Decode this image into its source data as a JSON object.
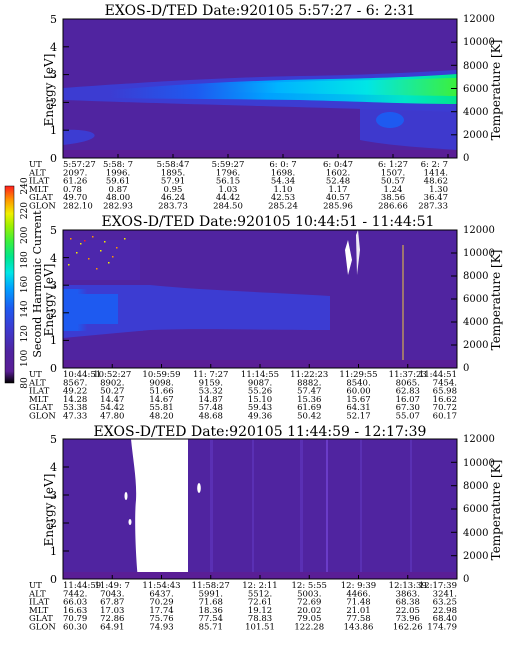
{
  "colors": {
    "background": "#5024a0",
    "scale": [
      "#000000",
      "#5a1e96",
      "#5024a0",
      "#3c3cd2",
      "#1e5af0",
      "#00a0ff",
      "#00e6e6",
      "#00e68c",
      "#3cf03c",
      "#a0f000",
      "#f0f000",
      "#ff9600",
      "#ff1e1e"
    ]
  },
  "colorbar": {
    "label": "Second Harmonic Current",
    "ticks": [
      "80",
      "100",
      "120",
      "140",
      "160",
      "180",
      "200",
      "220",
      "240"
    ],
    "range": [
      80,
      240
    ]
  },
  "panels": [
    {
      "title": "EXOS-D/TED   Date:920105   5:57:27 - 6: 2:31",
      "ylabel": "Energy [eV]",
      "y2label": "Temperature [K]",
      "yticks": [
        "0",
        "1",
        "2",
        "3",
        "4",
        "5"
      ],
      "y2ticks": [
        "0",
        "2000",
        "4000",
        "6000",
        "8000",
        "10000",
        "12000"
      ],
      "table": {
        "row_labels": [
          "UT",
          "ALT",
          "ILAT",
          "MLT",
          "GLAT",
          "GLON"
        ],
        "columns": [
          [
            "5:57:27",
            "2097.",
            "61.26",
            "0.78",
            "49.70",
            "282.10"
          ],
          [
            "5:58: 7",
            "1996.",
            "59.61",
            "0.87",
            "48.00",
            "282.93"
          ],
          [
            "5:58:47",
            "1895.",
            "57.91",
            "0.95",
            "46.24",
            "283.73"
          ],
          [
            "5:59:27",
            "1796.",
            "56.15",
            "1.03",
            "44.42",
            "284.50"
          ],
          [
            "6: 0: 7",
            "1698.",
            "54.34",
            "1.10",
            "42.53",
            "285.24"
          ],
          [
            "6: 0:47",
            "1602.",
            "52.48",
            "1.17",
            "40.57",
            "285.96"
          ],
          [
            "6: 1:27",
            "1507.",
            "50.57",
            "1.24",
            "38.56",
            "286.66"
          ],
          [
            "6: 2: 7",
            "1414.",
            "48.62",
            "1.30",
            "36.47",
            "287.33"
          ]
        ]
      }
    },
    {
      "title": "EXOS-D/TED   Date:920105   10:44:51 - 11:44:51",
      "ylabel": "Energy [eV]",
      "y2label": "Temperature [K]",
      "yticks": [
        "0",
        "1",
        "2",
        "3",
        "4",
        "5"
      ],
      "y2ticks": [
        "0",
        "2000",
        "4000",
        "6000",
        "8000",
        "10000",
        "12000"
      ],
      "table": {
        "row_labels": [
          "UT",
          "ALT",
          "ILAT",
          "MLT",
          "GLAT",
          "GLON"
        ],
        "columns": [
          [
            "10:44:51",
            "8567.",
            "49.22",
            "14.28",
            "53.38",
            "47.33"
          ],
          [
            "10:52:27",
            "8902.",
            "50.27",
            "14.47",
            "54.42",
            "47.80"
          ],
          [
            "10:59:59",
            "9098.",
            "51.66",
            "14.67",
            "55.81",
            "48.20"
          ],
          [
            "11: 7:27",
            "9159.",
            "53.32",
            "14.87",
            "57.48",
            "48.68"
          ],
          [
            "11:14:55",
            "9087.",
            "55.26",
            "15.10",
            "59.43",
            "49.36"
          ],
          [
            "11:22:23",
            "8882.",
            "57.47",
            "15.36",
            "61.69",
            "50.42"
          ],
          [
            "11:29:55",
            "8540.",
            "60.00",
            "15.67",
            "64.31",
            "52.17"
          ],
          [
            "11:37:23",
            "8065.",
            "62.83",
            "16.07",
            "67.30",
            "55.07"
          ],
          [
            "11:44:51",
            "7454.",
            "65.98",
            "16.62",
            "70.72",
            "60.17"
          ]
        ]
      }
    },
    {
      "title": "EXOS-D/TED   Date:920105   11:44:59 - 12:17:39",
      "ylabel": "Energy [eV]",
      "y2label": "Temperature [K]",
      "yticks": [
        "0",
        "1",
        "2",
        "3",
        "4",
        "5"
      ],
      "y2ticks": [
        "0",
        "2000",
        "4000",
        "6000",
        "8000",
        "10000",
        "12000"
      ],
      "table": {
        "row_labels": [
          "UT",
          "ALT",
          "ILAT",
          "MLT",
          "GLAT",
          "GLON"
        ],
        "columns": [
          [
            "11:44:59",
            "7442.",
            "66.03",
            "16.63",
            "70.79",
            "60.30"
          ],
          [
            "11:49: 7",
            "7043.",
            "67.87",
            "17.03",
            "72.86",
            "64.91"
          ],
          [
            "11:54:43",
            "6437.",
            "70.29",
            "17.74",
            "75.76",
            "74.93"
          ],
          [
            "11:58:27",
            "5991.",
            "71.68",
            "18.36",
            "77.54",
            "85.71"
          ],
          [
            "12: 2:11",
            "5512.",
            "72.61",
            "19.12",
            "78.83",
            "101.51"
          ],
          [
            "12: 5:55",
            "5003.",
            "72.69",
            "20.02",
            "79.05",
            "122.28"
          ],
          [
            "12: 9:39",
            "4466.",
            "71.48",
            "21.01",
            "77.58",
            "143.86"
          ],
          [
            "12:13:39",
            "3863.",
            "68.38",
            "22.05",
            "73.96",
            "162.26"
          ],
          [
            "12:17:39",
            "3241.",
            "63.25",
            "22.98",
            "68.40",
            "174.79"
          ]
        ]
      }
    }
  ],
  "chart_data": [
    {
      "type": "heatmap",
      "title": "EXOS-D/TED   Date:920105   5:57:27 - 6: 2:31",
      "xlabel": "UT",
      "ylabel": "Energy [eV]",
      "y2label": "Temperature [K]",
      "ylim": [
        0,
        5
      ],
      "y2lim": [
        0,
        12000
      ],
      "zlim": [
        80,
        240
      ],
      "features": [
        {
          "kind": "band",
          "x_range": [
            "5:57:27",
            "6: 2:31"
          ],
          "energy_center_start": 2.3,
          "energy_center_end": 2.8,
          "peak_level": 150,
          "base_level": 120
        },
        {
          "kind": "patch",
          "x_range": [
            "6: 1:27",
            "6: 2:31"
          ],
          "energy_range": [
            0.5,
            1.6
          ],
          "level": 130
        }
      ]
    },
    {
      "type": "heatmap",
      "title": "EXOS-D/TED   Date:920105   10:44:51 - 11:44:51",
      "xlabel": "UT",
      "ylabel": "Energy [eV]",
      "y2label": "Temperature [K]",
      "ylim": [
        0,
        5
      ],
      "y2lim": [
        0,
        12000
      ],
      "zlim": [
        80,
        240
      ],
      "features": [
        {
          "kind": "band",
          "x_range": [
            "10:44:51",
            "10:52:27"
          ],
          "energy_range": [
            1.6,
            3.0
          ],
          "level": 140
        },
        {
          "kind": "band",
          "x_range": [
            "10:52:27",
            "11:22:23"
          ],
          "energy_range": [
            1.6,
            2.8
          ],
          "level": 125
        },
        {
          "kind": "spike",
          "x": "11:29:55",
          "energy_range": [
            3.8,
            5.0
          ],
          "level": 240
        },
        {
          "kind": "spike",
          "x": "11:37:23",
          "energy_range": [
            0.0,
            4.5
          ],
          "level": 60
        }
      ]
    },
    {
      "type": "heatmap",
      "title": "EXOS-D/TED   Date:920105   11:44:59 - 12:17:39",
      "xlabel": "UT",
      "ylabel": "Energy [eV]",
      "y2label": "Temperature [K]",
      "ylim": [
        0,
        5
      ],
      "y2lim": [
        0,
        12000
      ],
      "zlim": [
        80,
        240
      ],
      "features": [
        {
          "kind": "saturated",
          "x_range": [
            "11:49:50",
            "11:54:43"
          ],
          "energy_range": [
            0,
            5
          ],
          "level": 255
        },
        {
          "kind": "background",
          "x_range": [
            "11:44:59",
            "12:17:39"
          ],
          "energy_range": [
            0,
            5
          ],
          "level": 110
        }
      ]
    }
  ]
}
